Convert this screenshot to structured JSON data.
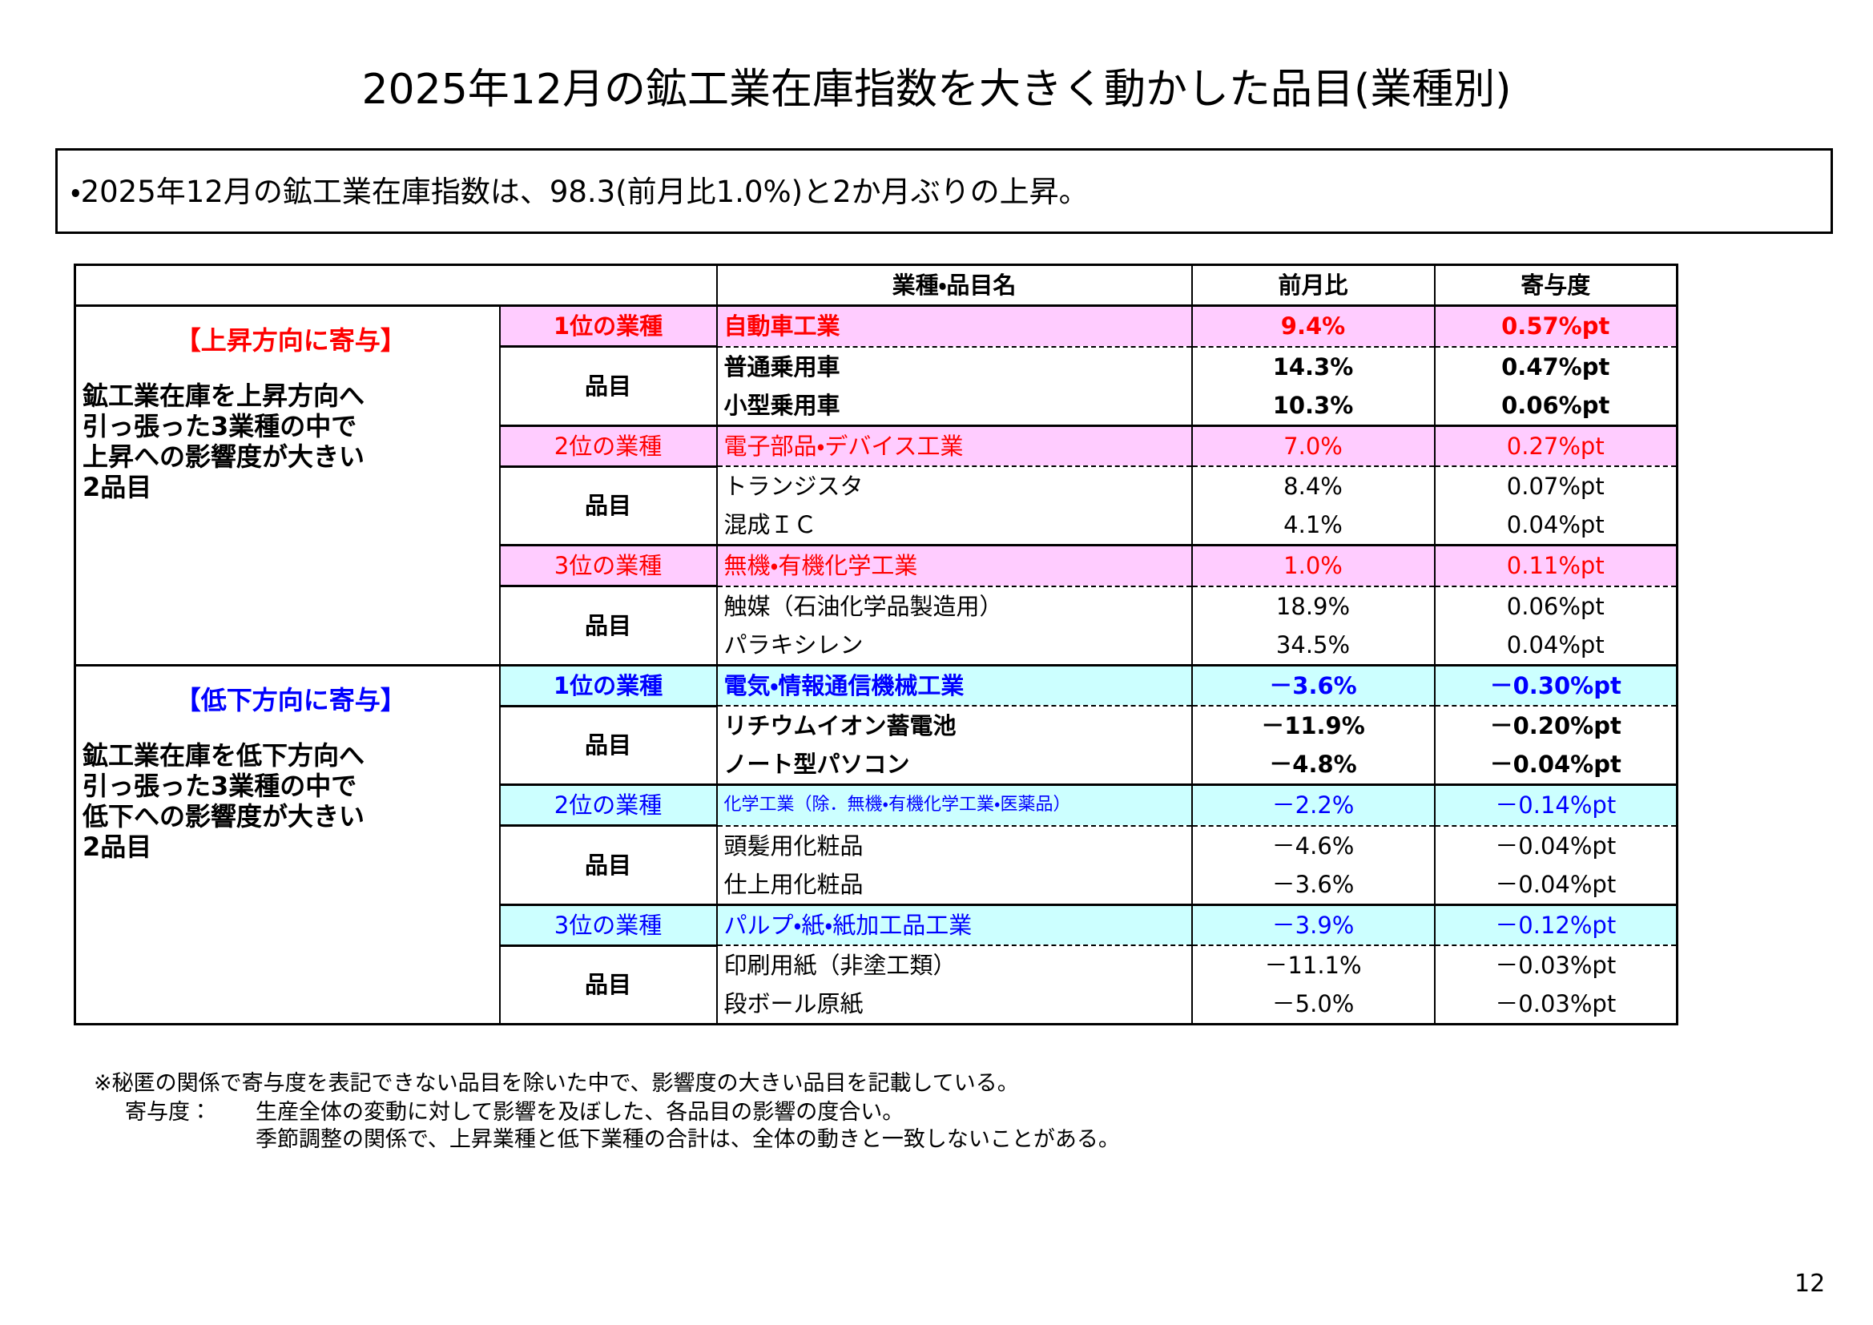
{
  "title": "2025年12月の鉱工業在庫指数を大きく動かした品目(業種別)",
  "summary": "・2025年12月の鉱工業在庫指数は、98.3(前月比1.0%)と2か月ぶりの上昇。",
  "table": {
    "header": [
      "業種・品目名",
      "前月比",
      "寄与度"
    ],
    "sections": [
      {
        "label": "【上昇方向に寄与】",
        "description": [
          "鉱工業在庫を上昇方向へ",
          "引っ張った3業種の中で",
          "上昇への影響度が大きい",
          "2品目"
        ],
        "groups": [
          {
            "rank": "1位の業種",
            "industry": "自動車工業",
            "change": "9.4%",
            "contribution": "0.57%pt",
            "items_label": "品目",
            "items": [
              [
                "普通乗用車",
                "14.3%",
                "0.47%pt"
              ],
              [
                "小型乗用車",
                "10.3%",
                "0.06%pt"
              ]
            ]
          },
          {
            "rank": "2位の業種",
            "industry": "電子部品・デバイス工業",
            "change": "7.0%",
            "contribution": "0.27%pt",
            "items_label": "品目",
            "items": [
              [
                "トランジスタ",
                "8.4%",
                "0.07%pt"
              ],
              [
                "混成ＩＣ",
                "4.1%",
                "0.04%pt"
              ]
            ]
          },
          {
            "rank": "3位の業種",
            "industry": "無機・有機化学工業",
            "change": "1.0%",
            "contribution": "0.11%pt",
            "items_label": "品目",
            "items": [
              [
                "触媒（石油化学品製造用）",
                "18.9%",
                "0.06%pt"
              ],
              [
                "パラキシレン",
                "34.5%",
                "0.04%pt"
              ]
            ]
          }
        ]
      },
      {
        "label": "【低下方向に寄与】",
        "description": [
          "鉱工業在庫を低下方向へ",
          "引っ張った3業種の中で",
          "低下への影響度が大きい",
          "2品目"
        ],
        "groups": [
          {
            "rank": "1位の業種",
            "industry": "電気・情報通信機械工業",
            "change": "－3.6%",
            "contribution": "－0.30%pt",
            "items_label": "品目",
            "items": [
              [
                "リチウムイオン蓄電池",
                "－11.9%",
                "－0.20%pt"
              ],
              [
                "ノート型パソコン",
                "－4.8%",
                "－0.04%pt"
              ]
            ]
          },
          {
            "rank": "2位の業種",
            "industry": "化学工業（除．無機・有機化学工業・医薬品）",
            "change": "－2.2%",
            "contribution": "－0.14%pt",
            "items_label": "品目",
            "items": [
              [
                "頭髪用化粧品",
                "－4.6%",
                "－0.04%pt"
              ],
              [
                "仕上用化粧品",
                "－3.6%",
                "－0.04%pt"
              ]
            ]
          },
          {
            "rank": "3位の業種",
            "industry": "パルプ・紙・紙加工品工業",
            "change": "－3.9%",
            "contribution": "－0.12%pt",
            "items_label": "品目",
            "items": [
              [
                "印刷用紙（非塗工類）",
                "－11.1%",
                "－0.03%pt"
              ],
              [
                "段ボール原紙",
                "－5.0%",
                "－0.03%pt"
              ]
            ]
          }
        ]
      }
    ]
  },
  "notes": [
    "※秘匿の関係で寄与度を表記できない品目を除いた中で、影響度の大きい品目を記載している。",
    "寄与度：",
    "生産全体の変動に対して影響を及ぼした、各品目の影響の度合い。",
    "季節調整の関係で、上昇業種と低下業種の合計は、全体の動きと一致しないことがある。"
  ],
  "page_number": "12"
}
